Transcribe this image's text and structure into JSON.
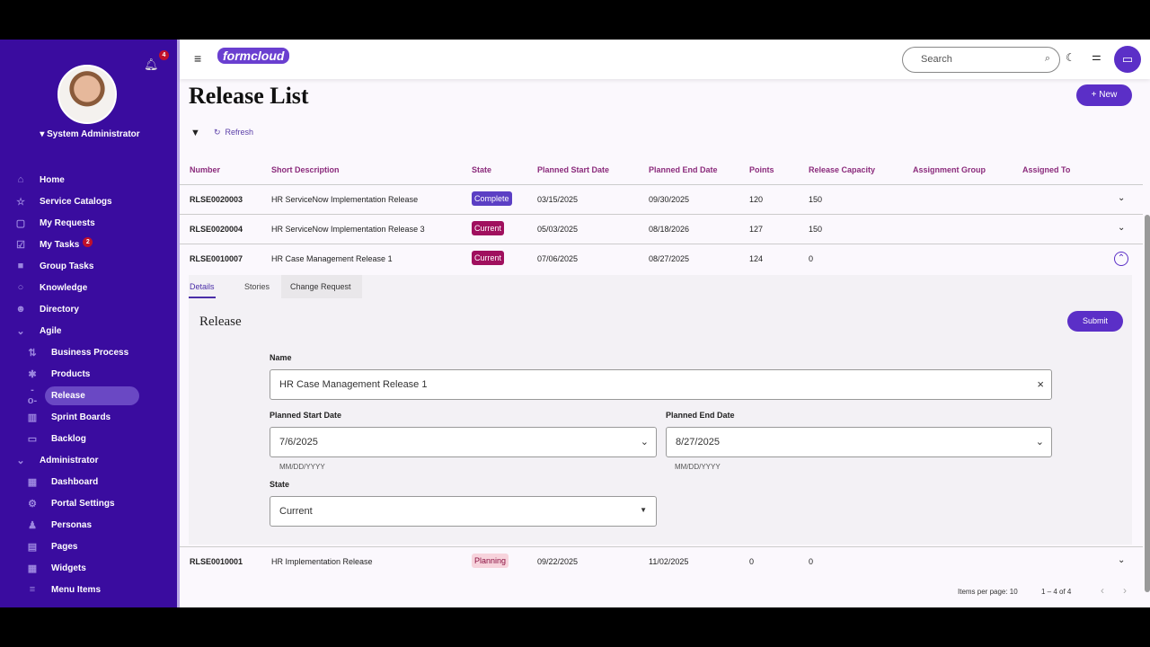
{
  "sidebar": {
    "user": "System Administrator",
    "notifications": "4",
    "items": [
      {
        "label": "Home",
        "icon": "home-icon",
        "glyph": "⌂"
      },
      {
        "label": "Service Catalogs",
        "icon": "star-icon",
        "glyph": "☆"
      },
      {
        "label": "My Requests",
        "icon": "requests-icon",
        "glyph": "▢"
      },
      {
        "label": "My Tasks",
        "icon": "check-circle-icon",
        "glyph": "☑",
        "badge": "2"
      },
      {
        "label": "Group Tasks",
        "icon": "briefcase-icon",
        "glyph": "■"
      },
      {
        "label": "Knowledge",
        "icon": "lightbulb-icon",
        "glyph": "○"
      },
      {
        "label": "Directory",
        "icon": "person-search-icon",
        "glyph": "☻"
      },
      {
        "label": "Agile",
        "icon": "chevron-down-icon",
        "glyph": "⌄"
      },
      {
        "label": "Business Process",
        "icon": "process-icon",
        "glyph": "⇅"
      },
      {
        "label": "Products",
        "icon": "puzzle-icon",
        "glyph": "✱"
      },
      {
        "label": "Release",
        "icon": "commit-icon",
        "glyph": "-o-"
      },
      {
        "label": "Sprint Boards",
        "icon": "columns-icon",
        "glyph": "▥"
      },
      {
        "label": "Backlog",
        "icon": "tab-icon",
        "glyph": "▭"
      },
      {
        "label": "Administrator",
        "icon": "chevron-down-icon",
        "glyph": "⌄"
      },
      {
        "label": "Dashboard",
        "icon": "dashboard-icon",
        "glyph": "▦"
      },
      {
        "label": "Portal Settings",
        "icon": "gear-icon",
        "glyph": "⚙"
      },
      {
        "label": "Personas",
        "icon": "persona-icon",
        "glyph": "♟"
      },
      {
        "label": "Pages",
        "icon": "book-icon",
        "glyph": "▤"
      },
      {
        "label": "Widgets",
        "icon": "widgets-icon",
        "glyph": "▦"
      },
      {
        "label": "Menu Items",
        "icon": "menu-icon",
        "glyph": "≡"
      }
    ]
  },
  "header": {
    "logo": "formcloud",
    "search_placeholder": "Search"
  },
  "page": {
    "title": "Release List",
    "new_label": "New",
    "refresh_label": "Refresh"
  },
  "table": {
    "columns": [
      "Number",
      "Short Description",
      "State",
      "Planned Start Date",
      "Planned End Date",
      "Points",
      "Release Capacity",
      "Assignment Group",
      "Assigned To"
    ],
    "rows": [
      {
        "number": "RLSE0020003",
        "desc": "HR ServiceNow Implementation Release",
        "state": "Complete",
        "start": "03/15/2025",
        "end": "09/30/2025",
        "points": "120",
        "capacity": "150"
      },
      {
        "number": "RLSE0020004",
        "desc": "HR ServiceNow Implementation Release 3",
        "state": "Current",
        "start": "05/03/2025",
        "end": "08/18/2026",
        "points": "127",
        "capacity": "150"
      },
      {
        "number": "RLSE0010007",
        "desc": "HR Case Management Release 1",
        "state": "Current",
        "start": "07/06/2025",
        "end": "08/27/2025",
        "points": "124",
        "capacity": "0"
      },
      {
        "number": "RLSE0010001",
        "desc": "HR Implementation Release",
        "state": "Planning",
        "start": "09/22/2025",
        "end": "11/02/2025",
        "points": "0",
        "capacity": "0"
      }
    ]
  },
  "state_colors": {
    "Complete": "#5b3fc4",
    "Current": "#a0105e",
    "Planning": "#f7d3dc"
  },
  "detail": {
    "tabs": [
      "Details",
      "Stories",
      "Change Request"
    ],
    "heading": "Release",
    "submit": "Submit",
    "name_label": "Name",
    "name_value": "HR Case Management Release 1",
    "start_label": "Planned Start Date",
    "start_value": "7/6/2025",
    "end_label": "Planned End Date",
    "end_value": "8/27/2025",
    "date_hint": "MM/DD/YYYY",
    "state_label": "State",
    "state_value": "Current"
  },
  "pagination": {
    "items_per_page": "Items per page: 10",
    "range": "1 – 4 of 4"
  }
}
